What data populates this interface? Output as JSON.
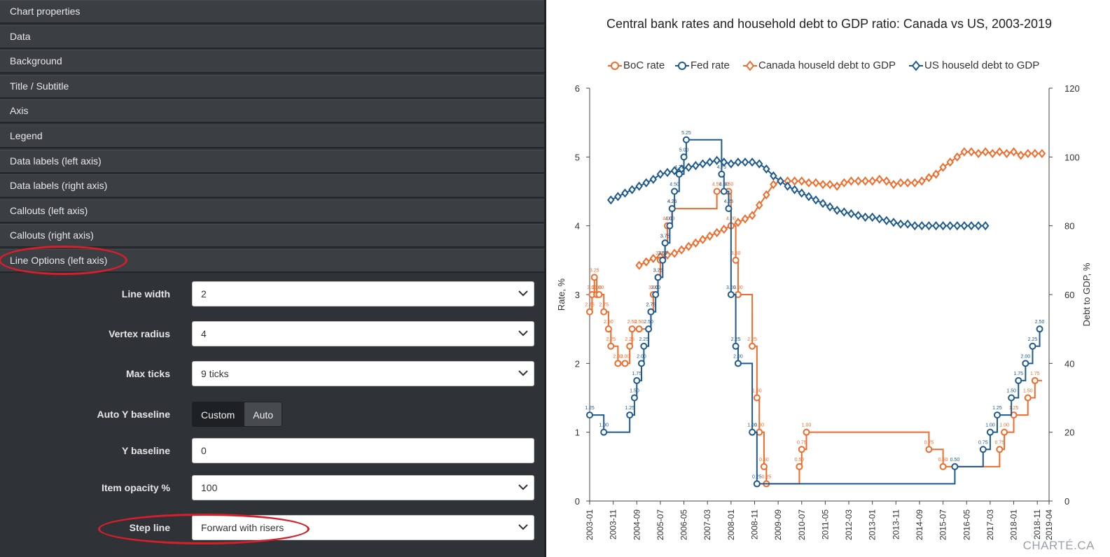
{
  "panel": {
    "sections": [
      "Chart properties",
      "Data",
      "Background",
      "Title / Subtitle",
      "Axis",
      "Legend",
      "Data labels (left axis)",
      "Data labels (right axis)",
      "Callouts (left axis)",
      "Callouts (right axis)",
      "Line Options (left axis)"
    ],
    "line_options": {
      "line_width": {
        "label": "Line width",
        "value": "2"
      },
      "vertex_radius": {
        "label": "Vertex radius",
        "value": "4"
      },
      "max_ticks": {
        "label": "Max ticks",
        "value": "9 ticks"
      },
      "auto_y_baseline": {
        "label": "Auto Y baseline",
        "options": [
          "Custom",
          "Auto"
        ],
        "selected": "Custom"
      },
      "y_baseline": {
        "label": "Y baseline",
        "value": "0"
      },
      "item_opacity": {
        "label": "Item opacity %",
        "value": "100"
      },
      "step_line": {
        "label": "Step line",
        "value": "Forward with risers"
      }
    },
    "highlight_color": "#d61f2b"
  },
  "chart_data": {
    "type": "line",
    "title": "Central bank rates and household debt to GDP ratio: Canada vs US, 2003-2019",
    "ylabel": "Rate, %",
    "y2label": "Debt to GDP, %",
    "ylim": [
      0,
      6
    ],
    "y2lim": [
      0,
      120
    ],
    "yticks": [
      "0",
      "1",
      "2",
      "3",
      "4",
      "5",
      "6"
    ],
    "y2ticks": [
      "0",
      "20",
      "40",
      "60",
      "80",
      "100",
      "120"
    ],
    "xticks": [
      "2003-01",
      "2003-11",
      "2004-09",
      "2005-07",
      "2006-05",
      "2007-03",
      "2008-01",
      "2008-11",
      "2009-09",
      "2010-07",
      "2011-05",
      "2012-03",
      "2013-01",
      "2013-11",
      "2014-09",
      "2015-07",
      "2016-05",
      "2017-03",
      "2018-01",
      "2018-11",
      "2019-04"
    ],
    "legend_position": "top-center",
    "series": [
      {
        "name": "BoC rate",
        "color": "#f26b2b",
        "axis": "left",
        "marker": "circle",
        "step": "forward",
        "points": [
          [
            "2003-01",
            2.75
          ],
          [
            "2003-02",
            3.0
          ],
          [
            "2003-03",
            3.25
          ],
          [
            "2003-04",
            3.0
          ],
          [
            "2003-05",
            3.0
          ],
          [
            "2003-07",
            2.75
          ],
          [
            "2003-09",
            2.5
          ],
          [
            "2003-10",
            2.25
          ],
          [
            "2004-01",
            2.0
          ],
          [
            "2004-04",
            2.0
          ],
          [
            "2004-06",
            2.25
          ],
          [
            "2004-07",
            2.5
          ],
          [
            "2004-10",
            2.5
          ],
          [
            "2005-03",
            2.75
          ],
          [
            "2005-04",
            3.0
          ],
          [
            "2005-06",
            3.25
          ],
          [
            "2005-07",
            3.5
          ],
          [
            "2005-09",
            3.75
          ],
          [
            "2005-10",
            4.0
          ],
          [
            "2005-12",
            4.25
          ],
          [
            "2007-07",
            4.5
          ],
          [
            "2007-12",
            4.5
          ],
          [
            "2008-01",
            4.0
          ],
          [
            "2008-03",
            3.5
          ],
          [
            "2008-04",
            3.0
          ],
          [
            "2008-10",
            2.25
          ],
          [
            "2008-12",
            1.5
          ],
          [
            "2009-01",
            1.0
          ],
          [
            "2009-03",
            0.5
          ],
          [
            "2009-04",
            0.25
          ],
          [
            "2010-06",
            0.5
          ],
          [
            "2010-07",
            0.75
          ],
          [
            "2010-09",
            1.0
          ],
          [
            "2015-01",
            0.75
          ],
          [
            "2015-07",
            0.5
          ],
          [
            "2017-07",
            0.75
          ],
          [
            "2017-09",
            1.0
          ],
          [
            "2018-01",
            1.25
          ],
          [
            "2018-07",
            1.5
          ],
          [
            "2018-10",
            1.75
          ]
        ],
        "labels": [
          "2.75",
          "3.00",
          "3.25",
          "3.00",
          "3.00",
          "2.75",
          "2.50",
          "2.25",
          "2.00",
          "2.00",
          "2.25",
          "2.50",
          "2.50",
          "2.75",
          "3.00",
          "3.25",
          "3.50",
          "3.75",
          "4.00",
          "4.25",
          "4.50",
          "4.50",
          "4.00",
          "3.50",
          "3.00",
          "2.25",
          "1.50",
          "1.00",
          "0.50",
          "0.25",
          "0.50",
          "0.75",
          "1.00",
          "0.75",
          "0.50",
          "0.75",
          "1.00",
          "1.25",
          "1.50",
          "1.75"
        ]
      },
      {
        "name": "Fed rate",
        "color": "#1d5a8e",
        "axis": "left",
        "marker": "circle",
        "step": "forward",
        "points": [
          [
            "2003-01",
            1.25
          ],
          [
            "2003-07",
            1.0
          ],
          [
            "2004-06",
            1.25
          ],
          [
            "2004-08",
            1.5
          ],
          [
            "2004-09",
            1.75
          ],
          [
            "2004-11",
            2.0
          ],
          [
            "2004-12",
            2.25
          ],
          [
            "2005-02",
            2.5
          ],
          [
            "2005-03",
            2.75
          ],
          [
            "2005-05",
            3.0
          ],
          [
            "2005-06",
            3.25
          ],
          [
            "2005-08",
            3.5
          ],
          [
            "2005-09",
            3.75
          ],
          [
            "2005-11",
            4.0
          ],
          [
            "2005-12",
            4.25
          ],
          [
            "2006-01",
            4.5
          ],
          [
            "2006-03",
            4.75
          ],
          [
            "2006-05",
            5.0
          ],
          [
            "2006-06",
            5.25
          ],
          [
            "2007-09",
            4.75
          ],
          [
            "2007-10",
            4.5
          ],
          [
            "2007-12",
            4.25
          ],
          [
            "2008-01",
            3.0
          ],
          [
            "2008-03",
            2.25
          ],
          [
            "2008-04",
            2.0
          ],
          [
            "2008-10",
            1.0
          ],
          [
            "2008-12",
            0.25
          ],
          [
            "2015-12",
            0.5
          ],
          [
            "2016-12",
            0.75
          ],
          [
            "2017-03",
            1.0
          ],
          [
            "2017-06",
            1.25
          ],
          [
            "2017-12",
            1.5
          ],
          [
            "2018-03",
            1.75
          ],
          [
            "2018-06",
            2.0
          ],
          [
            "2018-09",
            2.25
          ],
          [
            "2018-12",
            2.5
          ]
        ],
        "labels": [
          "1.25",
          "1.00",
          "1.25",
          "1.50",
          "1.75",
          "2.00",
          "2.25",
          "2.50",
          "2.75",
          "3.00",
          "3.25",
          "3.50",
          "3.75",
          "4.00",
          "4.25",
          "4.50",
          "4.75",
          "5.00",
          "5.25",
          "4.75",
          "4.50",
          "4.25",
          "3.00",
          "2.25",
          "2.00",
          "1.00",
          "0.25",
          "0.50",
          "0.75",
          "1.00",
          "1.25",
          "1.50",
          "1.75",
          "2.00",
          "2.25",
          "2.50"
        ]
      },
      {
        "name": "Canada houseld debt to GDP",
        "color": "#f26b2b",
        "axis": "right",
        "marker": "diamond",
        "step": "none",
        "points": [
          [
            "2004-10",
            68.5
          ],
          [
            "2005-01",
            69.5
          ],
          [
            "2005-04",
            70.5
          ],
          [
            "2005-07",
            71.0
          ],
          [
            "2005-10",
            71.5
          ],
          [
            "2006-01",
            72.0
          ],
          [
            "2006-04",
            73.0
          ],
          [
            "2006-07",
            74.0
          ],
          [
            "2006-10",
            75.0
          ],
          [
            "2007-01",
            76.0
          ],
          [
            "2007-04",
            77.0
          ],
          [
            "2007-07",
            78.0
          ],
          [
            "2007-10",
            79.0
          ],
          [
            "2008-01",
            80.0
          ],
          [
            "2008-04",
            81.0
          ],
          [
            "2008-07",
            82.0
          ],
          [
            "2008-10",
            83.0
          ],
          [
            "2009-01",
            86.0
          ],
          [
            "2009-04",
            89.0
          ],
          [
            "2009-07",
            92.0
          ],
          [
            "2009-10",
            93.0
          ],
          [
            "2010-01",
            93.0
          ],
          [
            "2010-04",
            93.0
          ],
          [
            "2010-07",
            93.0
          ],
          [
            "2010-10",
            92.5
          ],
          [
            "2011-01",
            92.5
          ],
          [
            "2011-04",
            92.0
          ],
          [
            "2011-07",
            92.0
          ],
          [
            "2011-10",
            91.5
          ],
          [
            "2012-01",
            92.5
          ],
          [
            "2012-04",
            93.0
          ],
          [
            "2012-07",
            93.0
          ],
          [
            "2012-10",
            93.0
          ],
          [
            "2013-01",
            93.0
          ],
          [
            "2013-04",
            93.5
          ],
          [
            "2013-07",
            93.0
          ],
          [
            "2013-10",
            92.0
          ],
          [
            "2014-01",
            92.5
          ],
          [
            "2014-04",
            92.5
          ],
          [
            "2014-07",
            92.5
          ],
          [
            "2014-10",
            93.0
          ],
          [
            "2015-01",
            94.0
          ],
          [
            "2015-04",
            95.0
          ],
          [
            "2015-07",
            97.0
          ],
          [
            "2015-10",
            98.5
          ],
          [
            "2016-01",
            100.0
          ],
          [
            "2016-04",
            101.5
          ],
          [
            "2016-07",
            101.5
          ],
          [
            "2016-10",
            101.0
          ],
          [
            "2017-01",
            101.5
          ],
          [
            "2017-04",
            101.0
          ],
          [
            "2017-07",
            101.5
          ],
          [
            "2017-10",
            101.0
          ],
          [
            "2018-01",
            101.5
          ],
          [
            "2018-04",
            100.5
          ],
          [
            "2018-07",
            101.0
          ],
          [
            "2018-10",
            101.0
          ],
          [
            "2019-01",
            101.0
          ]
        ]
      },
      {
        "name": "US houseld debt to GDP",
        "color": "#1d5a8e",
        "axis": "right",
        "marker": "diamond",
        "step": "none",
        "points": [
          [
            "2003-10",
            87.5
          ],
          [
            "2004-01",
            88.5
          ],
          [
            "2004-04",
            89.5
          ],
          [
            "2004-07",
            90.5
          ],
          [
            "2004-10",
            91.5
          ],
          [
            "2005-01",
            92.5
          ],
          [
            "2005-04",
            93.5
          ],
          [
            "2005-07",
            95.0
          ],
          [
            "2005-10",
            95.5
          ],
          [
            "2006-01",
            96.0
          ],
          [
            "2006-04",
            96.5
          ],
          [
            "2006-07",
            97.0
          ],
          [
            "2006-10",
            97.5
          ],
          [
            "2007-01",
            98.0
          ],
          [
            "2007-04",
            98.5
          ],
          [
            "2007-07",
            99.0
          ],
          [
            "2007-10",
            98.5
          ],
          [
            "2008-01",
            98.0
          ],
          [
            "2008-04",
            98.5
          ],
          [
            "2008-07",
            98.5
          ],
          [
            "2008-10",
            98.5
          ],
          [
            "2009-01",
            98.0
          ],
          [
            "2009-04",
            96.5
          ],
          [
            "2009-07",
            94.5
          ],
          [
            "2009-10",
            93.0
          ],
          [
            "2010-01",
            91.5
          ],
          [
            "2010-04",
            90.5
          ],
          [
            "2010-07",
            89.5
          ],
          [
            "2010-10",
            88.5
          ],
          [
            "2011-01",
            87.5
          ],
          [
            "2011-04",
            86.5
          ],
          [
            "2011-07",
            85.5
          ],
          [
            "2011-10",
            84.5
          ],
          [
            "2012-01",
            84.0
          ],
          [
            "2012-04",
            83.5
          ],
          [
            "2012-07",
            83.0
          ],
          [
            "2012-10",
            82.5
          ],
          [
            "2013-01",
            82.5
          ],
          [
            "2013-04",
            82.0
          ],
          [
            "2013-07",
            81.5
          ],
          [
            "2013-10",
            81.0
          ],
          [
            "2014-01",
            80.5
          ],
          [
            "2014-04",
            80.5
          ],
          [
            "2014-07",
            80.0
          ],
          [
            "2014-10",
            80.0
          ],
          [
            "2015-01",
            80.0
          ],
          [
            "2015-04",
            80.0
          ],
          [
            "2015-07",
            80.0
          ],
          [
            "2015-10",
            80.0
          ],
          [
            "2016-01",
            80.0
          ],
          [
            "2016-04",
            80.0
          ],
          [
            "2016-07",
            80.0
          ],
          [
            "2016-10",
            80.0
          ],
          [
            "2017-01",
            80.0
          ]
        ]
      }
    ],
    "grid": false
  },
  "watermark": "CHARTÉ.CA"
}
